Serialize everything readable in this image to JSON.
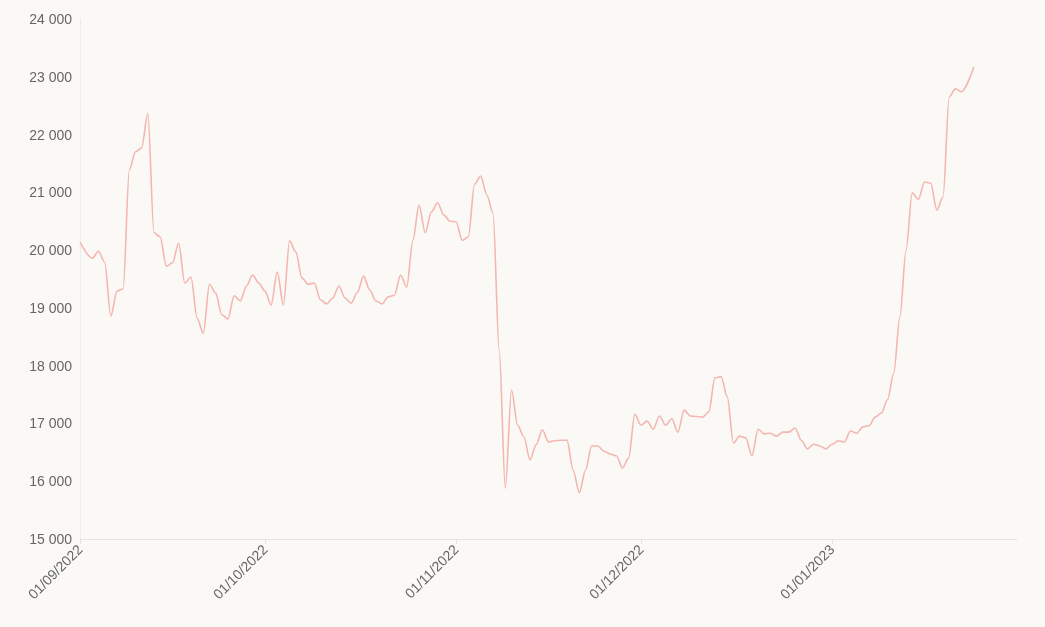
{
  "chart_data": {
    "type": "line",
    "x": [
      "2022-09-01",
      "2022-09-03",
      "2022-09-04",
      "2022-09-05",
      "2022-09-06",
      "2022-09-07",
      "2022-09-08",
      "2022-09-09",
      "2022-09-10",
      "2022-09-11",
      "2022-09-12",
      "2022-09-13",
      "2022-09-14",
      "2022-09-15",
      "2022-09-16",
      "2022-09-17",
      "2022-09-18",
      "2022-09-19",
      "2022-09-20",
      "2022-09-21",
      "2022-09-22",
      "2022-09-23",
      "2022-09-24",
      "2022-09-25",
      "2022-09-26",
      "2022-09-27",
      "2022-09-28",
      "2022-09-29",
      "2022-09-30",
      "2022-10-01",
      "2022-10-02",
      "2022-10-03",
      "2022-10-04",
      "2022-10-05",
      "2022-10-06",
      "2022-10-07",
      "2022-10-08",
      "2022-10-09",
      "2022-10-10",
      "2022-10-11",
      "2022-10-12",
      "2022-10-13",
      "2022-10-14",
      "2022-10-15",
      "2022-10-16",
      "2022-10-17",
      "2022-10-18",
      "2022-10-19",
      "2022-10-20",
      "2022-10-21",
      "2022-10-22",
      "2022-10-23",
      "2022-10-24",
      "2022-10-25",
      "2022-10-26",
      "2022-10-27",
      "2022-10-28",
      "2022-10-29",
      "2022-10-30",
      "2022-10-31",
      "2022-11-01",
      "2022-11-02",
      "2022-11-03",
      "2022-11-04",
      "2022-11-05",
      "2022-11-06",
      "2022-11-07",
      "2022-11-08",
      "2022-11-09",
      "2022-11-10",
      "2022-11-11",
      "2022-11-12",
      "2022-11-13",
      "2022-11-14",
      "2022-11-15",
      "2022-11-16",
      "2022-11-17",
      "2022-11-18",
      "2022-11-19",
      "2022-11-20",
      "2022-11-21",
      "2022-11-22",
      "2022-11-23",
      "2022-11-24",
      "2022-11-25",
      "2022-11-26",
      "2022-11-27",
      "2022-11-28",
      "2022-11-29",
      "2022-11-30",
      "2022-12-01",
      "2022-12-02",
      "2022-12-03",
      "2022-12-04",
      "2022-12-05",
      "2022-12-06",
      "2022-12-07",
      "2022-12-08",
      "2022-12-09",
      "2022-12-11",
      "2022-12-12",
      "2022-12-13",
      "2022-12-14",
      "2022-12-15",
      "2022-12-16",
      "2022-12-17",
      "2022-12-18",
      "2022-12-19",
      "2022-12-20",
      "2022-12-21",
      "2022-12-22",
      "2022-12-23",
      "2022-12-24",
      "2022-12-25",
      "2022-12-26",
      "2022-12-27",
      "2022-12-28",
      "2022-12-29",
      "2022-12-30",
      "2022-12-31",
      "2023-01-01",
      "2023-01-02",
      "2023-01-03",
      "2023-01-04",
      "2023-01-05",
      "2023-01-06",
      "2023-01-07",
      "2023-01-08",
      "2023-01-09",
      "2023-01-10",
      "2023-01-11",
      "2023-01-12",
      "2023-01-13",
      "2023-01-14",
      "2023-01-15",
      "2023-01-16",
      "2023-01-17",
      "2023-01-18",
      "2023-01-19",
      "2023-01-20",
      "2023-01-21",
      "2023-01-22",
      "2023-01-24"
    ],
    "series": [
      {
        "color": "#f4b6b0",
        "values": [
          20140,
          19860,
          19980,
          19790,
          18860,
          19290,
          19330,
          21390,
          21700,
          21770,
          22370,
          20300,
          20230,
          19720,
          19780,
          20120,
          19430,
          19530,
          18820,
          18560,
          19410,
          19260,
          18880,
          18810,
          19210,
          19120,
          19380,
          19570,
          19430,
          19290,
          19050,
          19620,
          19050,
          20160,
          19970,
          19520,
          19410,
          19430,
          19140,
          19070,
          19170,
          19380,
          19170,
          19080,
          19270,
          19550,
          19310,
          19120,
          19070,
          19190,
          19220,
          19570,
          19360,
          20170,
          20780,
          20300,
          20660,
          20820,
          20610,
          20500,
          20490,
          20170,
          20230,
          21140,
          21280,
          20950,
          20640,
          18270,
          15880,
          17580,
          16970,
          16770,
          16370,
          16630,
          16890,
          16680,
          16700,
          16710,
          16710,
          16190,
          15800,
          16190,
          16610,
          16610,
          16520,
          16470,
          16440,
          16230,
          16400,
          17160,
          16970,
          17040,
          16900,
          17130,
          16970,
          17080,
          16850,
          17230,
          17130,
          17110,
          17200,
          17790,
          17810,
          17460,
          16660,
          16780,
          16750,
          16440,
          16900,
          16820,
          16830,
          16780,
          16850,
          16850,
          16920,
          16710,
          16560,
          16640,
          16610,
          16560,
          16640,
          16700,
          16680,
          16870,
          16830,
          16940,
          16960,
          17110,
          17180,
          17410,
          17870,
          18840,
          20000,
          20990,
          20880,
          21180,
          21160,
          20690,
          20920,
          22650,
          22790,
          22740,
          23170
        ]
      }
    ],
    "xlim": [
      "2022-09-01",
      "2023-01-31"
    ],
    "xticks": [
      {
        "value": "2022-09-01",
        "label": "01/09/2022"
      },
      {
        "value": "2022-10-01",
        "label": "01/10/2022"
      },
      {
        "value": "2022-11-01",
        "label": "01/11/2022"
      },
      {
        "value": "2022-12-01",
        "label": "01/12/2022"
      },
      {
        "value": "2023-01-01",
        "label": "01/01/2023"
      }
    ],
    "ylim": [
      15000,
      24000
    ],
    "yticks": [
      {
        "value": 15000,
        "label": "15 000"
      },
      {
        "value": 16000,
        "label": "16 000"
      },
      {
        "value": 17000,
        "label": "17 000"
      },
      {
        "value": 18000,
        "label": "18 000"
      },
      {
        "value": 19000,
        "label": "19 000"
      },
      {
        "value": 20000,
        "label": "20 000"
      },
      {
        "value": 21000,
        "label": "21 000"
      },
      {
        "value": 22000,
        "label": "22 000"
      },
      {
        "value": 23000,
        "label": "23 000"
      },
      {
        "value": 24000,
        "label": "24 000"
      }
    ]
  }
}
